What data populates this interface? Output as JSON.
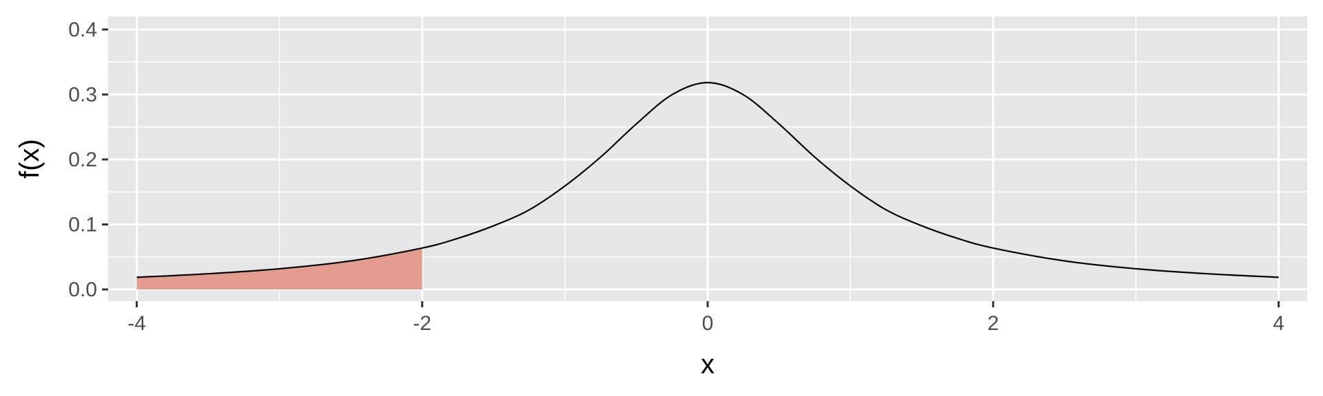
{
  "chart_data": {
    "type": "area",
    "title": "",
    "xlabel": "x",
    "ylabel": "f(x)",
    "xlim": [
      -4.2,
      4.2
    ],
    "ylim": [
      -0.018,
      0.42
    ],
    "x_ticks": [
      -4,
      -2,
      0,
      2,
      4
    ],
    "x_tick_labels": [
      "-4",
      "-2",
      "0",
      "2",
      "4"
    ],
    "y_ticks": [
      0.0,
      0.1,
      0.2,
      0.3,
      0.4
    ],
    "y_tick_labels": [
      "0.0",
      "0.1",
      "0.2",
      "0.3",
      "0.4"
    ],
    "grid": true,
    "series": [
      {
        "kind": "line",
        "x": [
          -4,
          -3.5,
          -3,
          -2.5,
          -2,
          -1.75,
          -1.5,
          -1.25,
          -1,
          -0.75,
          -0.5,
          -0.25,
          0,
          0.25,
          0.5,
          0.75,
          1,
          1.25,
          1.5,
          1.75,
          2,
          2.5,
          3,
          3.5,
          4
        ],
        "y": [
          0.0187,
          0.0241,
          0.0318,
          0.0439,
          0.0637,
          0.0786,
          0.0979,
          0.1225,
          0.1592,
          0.2037,
          0.2546,
          0.2996,
          0.3183,
          0.2996,
          0.2546,
          0.2037,
          0.1592,
          0.1225,
          0.0979,
          0.0786,
          0.0637,
          0.0439,
          0.0318,
          0.0241,
          0.0187
        ],
        "color": "#000000"
      },
      {
        "kind": "area",
        "x": [
          -4,
          -3.5,
          -3,
          -2.5,
          -2
        ],
        "y": [
          0.0187,
          0.0241,
          0.0318,
          0.0439,
          0.0637
        ],
        "color": "#E39C8F"
      }
    ],
    "colors": {
      "panel_background": "#E6E6E6",
      "grid_line": "#FFFFFF",
      "tick_label": "#4D4D4D",
      "axis_title": "#000000",
      "shaded_area": "#E39C8F"
    }
  }
}
